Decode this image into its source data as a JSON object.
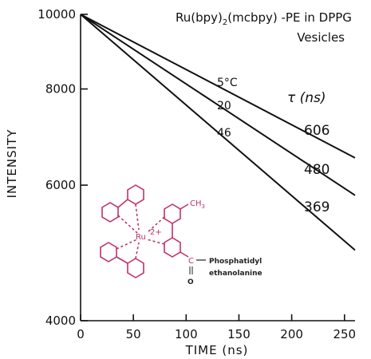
{
  "chart_data": {
    "type": "line",
    "title_line1": "Ru(bpy)",
    "title_sub": "2",
    "title_line1b": "(mcbpy) -PE in DPPG",
    "title_line2": "Vesicles",
    "xlabel": "TIME (ns)",
    "ylabel": "INTENSITY",
    "xlim": [
      0,
      260
    ],
    "ylim": [
      4000,
      10000
    ],
    "yscale": "log",
    "x_ticks": [
      0,
      50,
      100,
      150,
      200,
      250
    ],
    "x_tick_labels": [
      "0",
      "50",
      "100",
      "150",
      "200",
      "250"
    ],
    "y_ticks": [
      4000,
      6000,
      8000,
      10000
    ],
    "y_tick_labels": [
      "4000",
      "6000",
      "8000",
      "10000"
    ],
    "tau_header": "τ (ns)",
    "series": [
      {
        "name": "5°C",
        "tau_label": "606",
        "x": [
          0,
          260
        ],
        "y": [
          10000,
          6510
        ]
      },
      {
        "name": "20",
        "tau_label": "480",
        "x": [
          0,
          260
        ],
        "y": [
          10000,
          5820
        ]
      },
      {
        "name": "46",
        "tau_label": "369",
        "x": [
          0,
          260
        ],
        "y": [
          10000,
          4940
        ]
      }
    ],
    "grid": false,
    "legend": "none"
  },
  "molecule": {
    "charge": "2+",
    "metal": "Ru",
    "methyl": "CH",
    "methyl_sub": "3",
    "carbonyl_c": "C",
    "carbonyl_o": "O",
    "chain1": "Phosphatidyl",
    "chain2": "ethanolanine",
    "color": "#c0306f"
  }
}
